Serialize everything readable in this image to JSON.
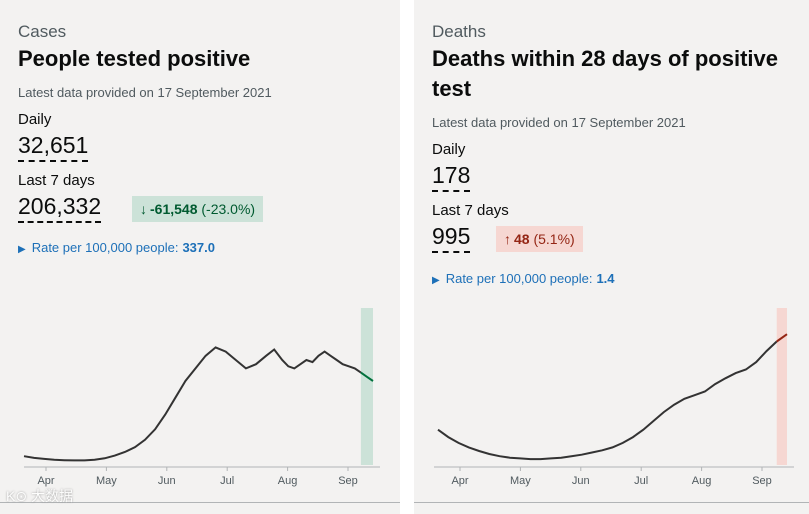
{
  "cases": {
    "caption": "Cases",
    "title": "People tested positive",
    "updated": "Latest data provided on 17 September 2021",
    "daily_label": "Daily",
    "daily_value": "32,651",
    "week_label": "Last 7 days",
    "week_value": "206,332",
    "change_arrow": "↓",
    "change_value": "-61,548",
    "change_pct": "(-23.0%)",
    "rate_label": "Rate per 100,000 people:",
    "rate_value": "337.0",
    "colors": {
      "line": "#333333",
      "highlight_fill": "#cce2d8",
      "highlight_line": "#00703c"
    }
  },
  "deaths": {
    "caption": "Deaths",
    "title": "Deaths within 28 days of positive test",
    "updated": "Latest data provided on 17 September 2021",
    "daily_label": "Daily",
    "daily_value": "178",
    "week_label": "Last 7 days",
    "week_value": "995",
    "change_arrow": "↑",
    "change_value": "48",
    "change_pct": "(5.1%)",
    "rate_label": "Rate per 100,000 people:",
    "rate_value": "1.4",
    "colors": {
      "line": "#333333",
      "highlight_fill": "#f6d7d2",
      "highlight_line": "#942514"
    }
  },
  "chart_data": [
    {
      "type": "line",
      "title": "People tested positive",
      "xlabel": "",
      "ylabel": "",
      "x_ticks": [
        "Apr",
        "May",
        "Jun",
        "Jul",
        "Aug",
        "Sep"
      ],
      "x": [
        0,
        5,
        10,
        15,
        20,
        25,
        30,
        35,
        40,
        45,
        50,
        55,
        60,
        65,
        70,
        75,
        80,
        85,
        90,
        95,
        100,
        105,
        110,
        115,
        120,
        124,
        128,
        131,
        134,
        137,
        140,
        143,
        146,
        149,
        152,
        155,
        158,
        161,
        164,
        167,
        170,
        173
      ],
      "values": [
        4200,
        3400,
        2900,
        2500,
        2300,
        2200,
        2200,
        2500,
        3200,
        4500,
        6200,
        8500,
        12000,
        17000,
        24000,
        32000,
        40000,
        46000,
        52000,
        56000,
        54000,
        50000,
        46000,
        48000,
        52000,
        55000,
        50000,
        47000,
        46000,
        48000,
        50000,
        49000,
        52000,
        54000,
        52000,
        50000,
        48000,
        47000,
        46000,
        44000,
        42000,
        40000
      ],
      "highlight_last_days": 7,
      "ylim": [
        0,
        70000
      ]
    },
    {
      "type": "line",
      "title": "Deaths within 28 days of positive test",
      "xlabel": "",
      "ylabel": "",
      "x_ticks": [
        "Apr",
        "May",
        "Jun",
        "Jul",
        "Aug",
        "Sep"
      ],
      "x": [
        0,
        5,
        10,
        15,
        20,
        25,
        30,
        35,
        40,
        45,
        50,
        55,
        60,
        65,
        70,
        75,
        80,
        85,
        90,
        95,
        100,
        105,
        110,
        115,
        120,
        125,
        130,
        135,
        140,
        145,
        150,
        155,
        160,
        165,
        170
      ],
      "values": [
        48,
        38,
        30,
        24,
        19,
        15,
        12,
        10,
        9,
        8,
        8,
        9,
        10,
        12,
        14,
        17,
        20,
        24,
        30,
        38,
        48,
        60,
        72,
        82,
        90,
        95,
        100,
        110,
        118,
        125,
        130,
        140,
        155,
        168,
        178
      ],
      "highlight_last_days": 7,
      "ylim": [
        0,
        200
      ]
    }
  ]
}
